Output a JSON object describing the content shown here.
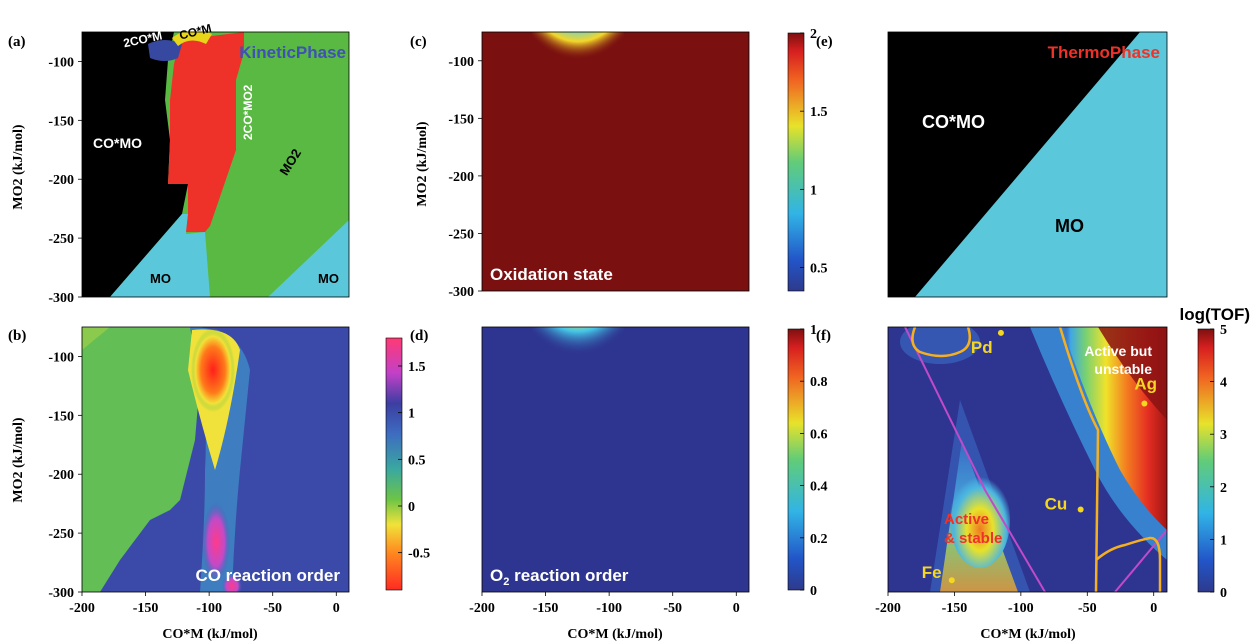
{
  "figure": {
    "panels": [
      {
        "id": "a",
        "letter": "(a)",
        "title": "KineticPhase",
        "title_color": "#3f51b5",
        "regions": [
          {
            "label": "2CO*M",
            "color": "#3748a0",
            "text_color": "#ffffff"
          },
          {
            "label": "CO*M",
            "color": "#e8d51a",
            "text_color": "#000000"
          },
          {
            "label": "CO*MO",
            "color": "#000000",
            "text_color": "#ffffff"
          },
          {
            "label": "2CO*MO2",
            "color": "#ee3229",
            "text_color": "#ffffff"
          },
          {
            "label": "MO2",
            "color": "#59b943",
            "text_color": "#000000"
          },
          {
            "label": "MO",
            "color": "#5ac8da",
            "text_color": "#000000"
          },
          {
            "label": "MO",
            "color": "#5ac8da",
            "text_color": "#000000"
          }
        ]
      },
      {
        "id": "b",
        "letter": "(b)",
        "caption": "CO reaction order"
      },
      {
        "id": "c",
        "letter": "(c)",
        "caption": "Oxidation state"
      },
      {
        "id": "d",
        "letter": "(d)",
        "caption_main": "O",
        "caption_sub": "2",
        "caption_rest": " reaction order"
      },
      {
        "id": "e",
        "letter": "(e)",
        "title": "ThermoPhase",
        "title_color": "#ee3229",
        "regions": [
          {
            "label": "CO*MO",
            "color": "#000000",
            "text_color": "#ffffff"
          },
          {
            "label": "MO",
            "color": "#5ac8da",
            "text_color": "#000000"
          }
        ]
      },
      {
        "id": "f",
        "letter": "(f)",
        "annotations": [
          {
            "text": "Active but",
            "color": "#ffffff"
          },
          {
            "text": "unstable",
            "color": "#ffffff"
          },
          {
            "text": "Active",
            "color": "#ee3229"
          },
          {
            "text": "& stable",
            "color": "#ee3229"
          }
        ]
      }
    ],
    "colorbars": [
      {
        "panel": "b",
        "ticks": [
          "1.5",
          "1",
          "0.5",
          "0",
          "-0.5"
        ]
      },
      {
        "panel": "c",
        "ticks": [
          "2",
          "1.5",
          "1",
          "0.5"
        ]
      },
      {
        "panel": "d",
        "ticks": [
          "1",
          "0.8",
          "0.6",
          "0.4",
          "0.2",
          "0"
        ]
      },
      {
        "panel": "f",
        "title": "log(TOF)",
        "ticks": [
          "5",
          "4",
          "3",
          "2",
          "1",
          "0"
        ]
      }
    ]
  },
  "chart_data": [
    {
      "type": "heatmap",
      "panel": "a",
      "title": "KineticPhase",
      "xlim": [
        -200,
        10
      ],
      "ylim": [
        -300,
        -75
      ],
      "ylabel": "MO2 (kJ/mol)",
      "yticks": [
        -100,
        -150,
        -200,
        -250,
        -300
      ],
      "phases": [
        "2CO*M",
        "CO*M",
        "CO*MO",
        "2CO*MO2",
        "MO2",
        "MO"
      ]
    },
    {
      "type": "heatmap",
      "panel": "b",
      "caption": "CO reaction order",
      "xlim": [
        -200,
        10
      ],
      "ylim": [
        -300,
        -75
      ],
      "xlabel": "CO*M (kJ/mol)",
      "ylabel": "MO2 (kJ/mol)",
      "xticks": [
        -200,
        -150,
        -100,
        -50,
        0
      ],
      "yticks": [
        -100,
        -150,
        -200,
        -250,
        -300
      ],
      "colorbar_range": [
        -0.9,
        1.8
      ],
      "colorbar_ticks": [
        1.5,
        1,
        0.5,
        0,
        -0.5
      ]
    },
    {
      "type": "heatmap",
      "panel": "c",
      "caption": "Oxidation state",
      "xlim": [
        -200,
        10
      ],
      "ylim": [
        -300,
        -75
      ],
      "ylabel": "MO2 (kJ/mol)",
      "yticks": [
        -100,
        -150,
        -200,
        -250,
        -300
      ],
      "colorbar_range": [
        0.35,
        2
      ],
      "colorbar_ticks": [
        2,
        1.5,
        1,
        0.5
      ]
    },
    {
      "type": "heatmap",
      "panel": "d",
      "caption": "O2 reaction order",
      "xlim": [
        -200,
        10
      ],
      "ylim": [
        -300,
        -75
      ],
      "xlabel": "CO*M (kJ/mol)",
      "xticks": [
        -200,
        -150,
        -100,
        -50,
        0
      ],
      "colorbar_range": [
        0,
        1
      ],
      "colorbar_ticks": [
        1,
        0.8,
        0.6,
        0.4,
        0.2,
        0
      ]
    },
    {
      "type": "heatmap",
      "panel": "e",
      "title": "ThermoPhase",
      "xlim": [
        -200,
        10
      ],
      "ylim": [
        -300,
        -75
      ],
      "phases": [
        "CO*MO",
        "MO"
      ]
    },
    {
      "type": "heatmap",
      "panel": "f",
      "colorbar_title": "log(TOF)",
      "xlim": [
        -200,
        10
      ],
      "ylim": [
        -300,
        -75
      ],
      "xlabel": "CO*M (kJ/mol)",
      "xticks": [
        -200,
        -150,
        -100,
        -50,
        0
      ],
      "colorbar_range": [
        0,
        5
      ],
      "colorbar_ticks": [
        5,
        4,
        3,
        2,
        1,
        0
      ],
      "metals": [
        {
          "name": "Pd",
          "x": -115,
          "y": -80
        },
        {
          "name": "Ag",
          "x": -7,
          "y": -140
        },
        {
          "name": "Cu",
          "x": -55,
          "y": -230
        },
        {
          "name": "Fe",
          "x": -152,
          "y": -290
        }
      ]
    }
  ]
}
